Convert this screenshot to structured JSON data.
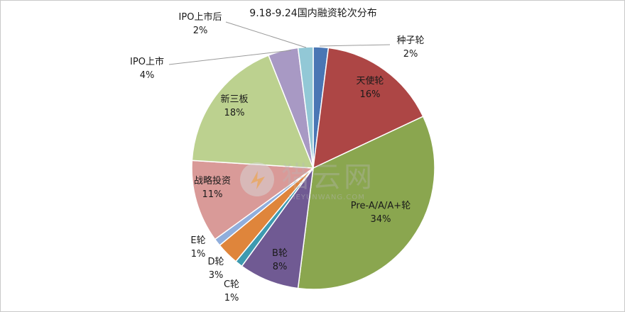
{
  "chart_data": {
    "type": "pie",
    "title": "9.18-9.24国内融资轮次分布",
    "slices": [
      {
        "name": "种子轮",
        "value": 2,
        "label": "2%",
        "color": "#4a76b4"
      },
      {
        "name": "天使轮",
        "value": 16,
        "label": "16%",
        "color": "#ad4645"
      },
      {
        "name": "Pre-A/A/A+轮",
        "value": 34,
        "label": "34%",
        "color": "#8aa64f"
      },
      {
        "name": "B轮",
        "value": 8,
        "label": "8%",
        "color": "#705a93"
      },
      {
        "name": "C轮",
        "value": 1,
        "label": "1%",
        "color": "#3e9ab0"
      },
      {
        "name": "D轮",
        "value": 3,
        "label": "3%",
        "color": "#df853b"
      },
      {
        "name": "E轮",
        "value": 1,
        "label": "1%",
        "color": "#90aedc"
      },
      {
        "name": "战略投资",
        "value": 11,
        "label": "11%",
        "color": "#d99a98"
      },
      {
        "name": "新三板",
        "value": 18,
        "label": "18%",
        "color": "#bcd18f"
      },
      {
        "name": "IPO上市",
        "value": 4,
        "label": "4%",
        "color": "#a899c4"
      },
      {
        "name": "IPO上市后",
        "value": 2,
        "label": "2%",
        "color": "#92c8d6"
      }
    ]
  },
  "watermark": {
    "text": "猎云网",
    "url": "LIEYUNWANG.COM"
  }
}
